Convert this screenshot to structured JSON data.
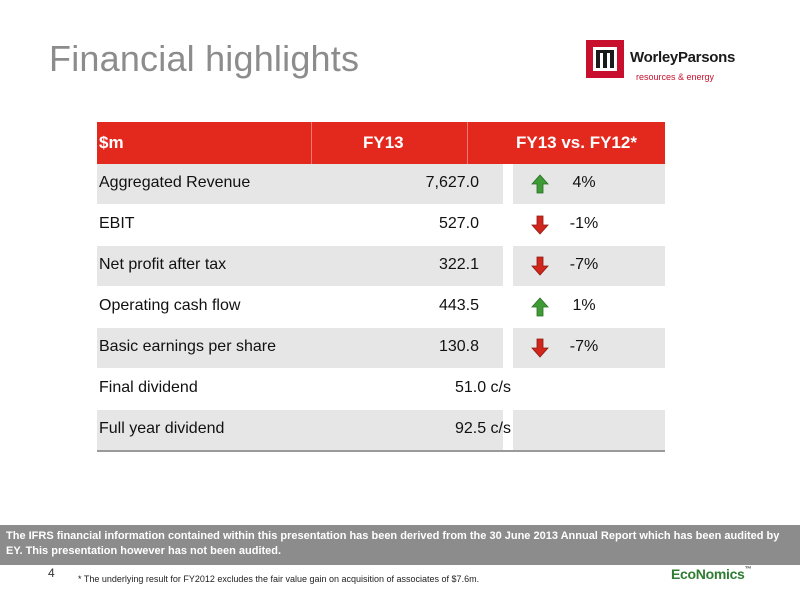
{
  "slide": {
    "title": "Financial highlights",
    "page_number": "4"
  },
  "logo": {
    "name": "WorleyParsons",
    "tagline": "resources & energy"
  },
  "table": {
    "headers": [
      "$m",
      "FY13",
      "FY13 vs. FY12*"
    ],
    "rows": [
      {
        "label": "Aggregated Revenue",
        "value": "7,627.0",
        "change": "4%",
        "direction": "up"
      },
      {
        "label": "EBIT",
        "value": "527.0",
        "change": "-1%",
        "direction": "down"
      },
      {
        "label": "Net profit after tax",
        "value": "322.1",
        "change": "-7%",
        "direction": "down"
      },
      {
        "label": "Operating cash flow",
        "value": "443.5",
        "change": "1%",
        "direction": "up"
      },
      {
        "label": "Basic earnings per share",
        "value": "130.8",
        "change": "-7%",
        "direction": "down"
      },
      {
        "label": "Final dividend",
        "value": "51.0 c/s",
        "change": "",
        "direction": ""
      },
      {
        "label": "Full year dividend",
        "value": "92.5 c/s",
        "change": "",
        "direction": ""
      }
    ]
  },
  "disclaimer": "The IFRS financial information contained within this presentation has been derived from the 30 June 2013 Annual Report  which has been audited by EY.  This presentation however has not been audited.",
  "footnote": "* The underlying result for FY2012 excludes the fair value gain on acquisition of associates of $7.6m.",
  "footer_logo": {
    "text": "EcoNomics",
    "mark": "™"
  },
  "colors": {
    "header_red": "#e3281e",
    "arrow_up": "#3f9b35",
    "arrow_down": "#d0261c",
    "title_grey": "#8c8c8c",
    "row_shade": "#e6e6e6"
  }
}
